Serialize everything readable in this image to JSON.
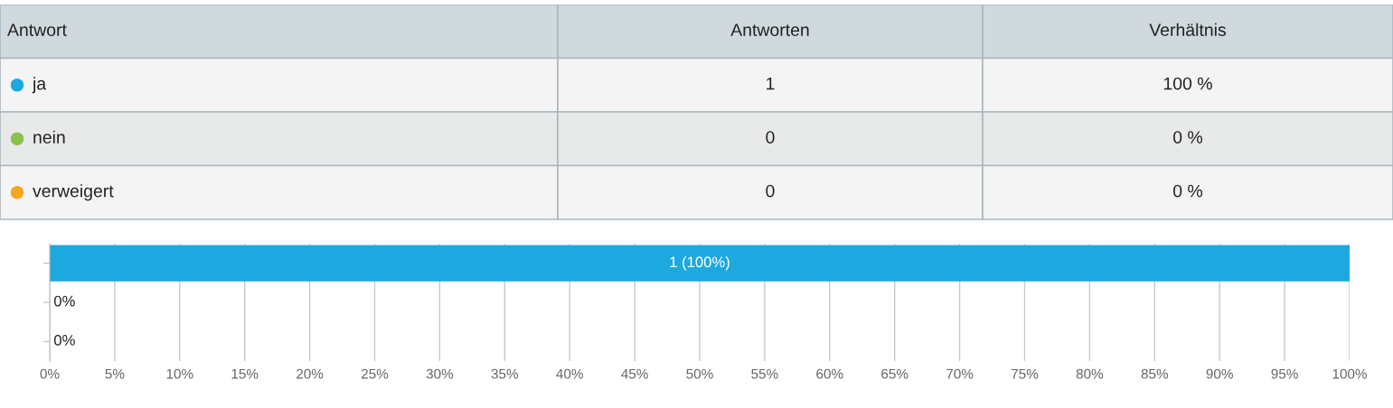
{
  "chart_data": [
    {
      "type": "other",
      "legend_title": "Antwort",
      "categories": [
        "ja",
        "nein",
        "verweigert"
      ],
      "colors": [
        "#1ea8e0",
        "#8bc34a",
        "#f5a623"
      ],
      "data_labels": true,
      "series": [
        {
          "name": "Antworten",
          "colors": [
            "#f4f4f4",
            "#e8eaea",
            "#f4f4f4"
          ],
          "values": [
            1,
            0,
            0
          ]
        },
        {
          "name": "Verhältnis",
          "colors": [
            "#f4f4f4",
            "#e8eaea",
            "#f4f4f4"
          ],
          "values": [
            100,
            0,
            0
          ],
          "value_labels": [
            "100 %",
            "0 %",
            "0 %"
          ]
        }
      ]
    },
    {
      "type": "bar",
      "orientation": "horizontal",
      "categories": [
        null,
        null,
        null
      ],
      "values": [
        100,
        0,
        0
      ],
      "colors": [
        "#1ea8e0",
        "#8bc34a",
        "#f5a623"
      ],
      "value_labels": [
        "1 (100%)",
        "0%",
        "0%"
      ],
      "xlim": [
        0,
        100
      ],
      "xticks": [
        {
          "value": 0,
          "label": "0%"
        },
        {
          "value": 5,
          "label": "5%"
        },
        {
          "value": 10,
          "label": "10%"
        },
        {
          "value": 15,
          "label": "15%"
        },
        {
          "value": 20,
          "label": "20%"
        },
        {
          "value": 25,
          "label": "25%"
        },
        {
          "value": 30,
          "label": "30%"
        },
        {
          "value": 35,
          "label": "35%"
        },
        {
          "value": 40,
          "label": "40%"
        },
        {
          "value": 45,
          "label": "45%"
        },
        {
          "value": 50,
          "label": "50%"
        },
        {
          "value": 55,
          "label": "55%"
        },
        {
          "value": 60,
          "label": "60%"
        },
        {
          "value": 65,
          "label": "65%"
        },
        {
          "value": 70,
          "label": "70%"
        },
        {
          "value": 75,
          "label": "75%"
        },
        {
          "value": 80,
          "label": "80%"
        },
        {
          "value": 85,
          "label": "85%"
        },
        {
          "value": 90,
          "label": "90%"
        },
        {
          "value": 95,
          "label": "95%"
        },
        {
          "value": 100,
          "label": "100%"
        }
      ],
      "grid": "x",
      "tick_labels": "x"
    }
  ]
}
